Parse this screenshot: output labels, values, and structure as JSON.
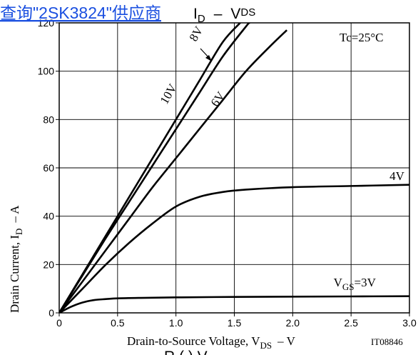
{
  "header": {
    "link_text": "查询\"2SK3824\"供应商",
    "title_prefix": "I",
    "title_sub": "D",
    "title_dash": "–",
    "title_v": "V",
    "title_vsub": "DS"
  },
  "condition_label": "Tc=25°C",
  "figure_code": "IT08846",
  "bottom_cut_text": "R    (   )   V",
  "chart_data": {
    "type": "line",
    "xlabel": {
      "prefix": "Drain-to-Source Voltage, V",
      "sub": "DS",
      "suffix": "–  V"
    },
    "ylabel": {
      "prefix": "Drain Current, I",
      "sub": "D",
      "suffix": "–  A"
    },
    "xlim": [
      0,
      3.0
    ],
    "ylim": [
      0,
      120
    ],
    "x_ticks": [
      0,
      0.5,
      1.0,
      1.5,
      2.0,
      2.5,
      3.0
    ],
    "x_tick_labels": [
      "0",
      "0.5",
      "1.0",
      "1.5",
      "2.0",
      "2.5",
      "3.0"
    ],
    "y_ticks": [
      0,
      20,
      40,
      60,
      80,
      100,
      120
    ],
    "y_tick_labels": [
      "0",
      "20",
      "40",
      "60",
      "80",
      "100",
      "120"
    ],
    "grid": true,
    "series": [
      {
        "name": "10V",
        "x": [
          0,
          0.2,
          0.4,
          0.6,
          0.8,
          1.0,
          1.2,
          1.4,
          1.55
        ],
        "y": [
          0,
          16,
          32,
          48,
          64,
          80,
          96,
          112,
          120
        ]
      },
      {
        "name": "8V",
        "x": [
          0,
          0.2,
          0.4,
          0.6,
          0.8,
          1.0,
          1.2,
          1.4,
          1.6,
          1.63
        ],
        "y": [
          0,
          15.5,
          31,
          46,
          61,
          76,
          91,
          106,
          118.5,
          120
        ]
      },
      {
        "name": "6V",
        "x": [
          0,
          0.2,
          0.4,
          0.6,
          0.8,
          1.0,
          1.2,
          1.4,
          1.6,
          1.8,
          1.95
        ],
        "y": [
          0,
          13,
          26,
          39,
          52,
          64,
          76,
          88,
          100,
          110,
          117
        ]
      },
      {
        "name": "4V",
        "x": [
          0,
          0.2,
          0.4,
          0.6,
          0.8,
          1.0,
          1.2,
          1.4,
          1.6,
          2.0,
          2.5,
          3.0
        ],
        "y": [
          0,
          10,
          20,
          29,
          37,
          44,
          48,
          50,
          51,
          52,
          52.5,
          53
        ]
      },
      {
        "name": "VGS=3V",
        "x": [
          0,
          0.1,
          0.2,
          0.3,
          0.4,
          0.5,
          0.7,
          1.0,
          1.5,
          2.0,
          2.5,
          3.0
        ],
        "y": [
          0,
          2.5,
          4.3,
          5.3,
          5.7,
          6.0,
          6.2,
          6.4,
          6.6,
          6.7,
          6.8,
          6.9
        ]
      }
    ],
    "curve_labels": [
      {
        "text": "10V",
        "x": 0.92,
        "y": 86,
        "rotate": -60
      },
      {
        "text": "8V",
        "x": 1.17,
        "y": 112,
        "rotate": -60
      },
      {
        "text": "6V",
        "x": 1.35,
        "y": 85,
        "rotate": -55
      },
      {
        "text": "4V",
        "x": 2.83,
        "y": 55,
        "rotate": 0
      },
      {
        "text": "V",
        "sub": "GS",
        "suffix": "=3V",
        "x": 2.35,
        "y": 11,
        "rotate": 0
      }
    ]
  }
}
